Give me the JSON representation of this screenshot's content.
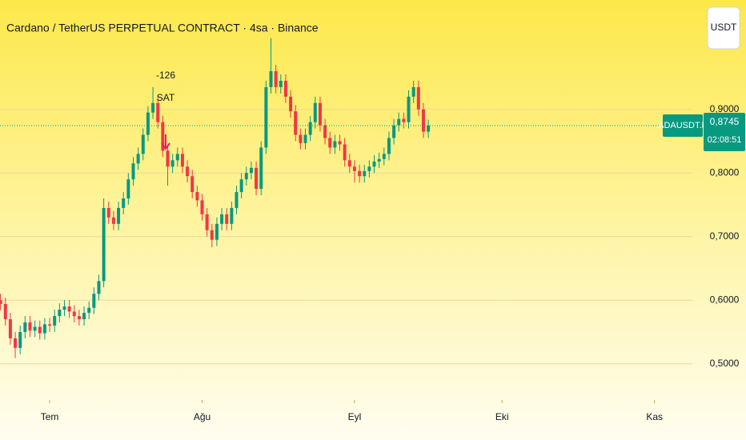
{
  "chart_data": {
    "type": "candlestick",
    "title": "Cardano / TetherUS PERPETUAL CONTRACT · 4sa · Binance",
    "currency_button": "USDT",
    "symbol_label": "ADAUSDT.P",
    "last_price": 0.8745,
    "last_price_label": "0,8745",
    "countdown": "02:08:51",
    "annotation": {
      "value_text": "-126",
      "signal": "SAT"
    },
    "up_color": "#089981",
    "down_color": "#f23645",
    "grid": true,
    "xlim": [
      -10.1,
      130.7
    ],
    "xticks": [
      {
        "value": 0,
        "label": "Tem"
      },
      {
        "value": 31,
        "label": "Ağu"
      },
      {
        "value": 62,
        "label": "Eyl"
      },
      {
        "value": 92,
        "label": "Eki"
      },
      {
        "value": 123,
        "label": "Kas"
      }
    ],
    "ylim": [
      0.443,
      1.072
    ],
    "yticks": [
      {
        "value": 0.5,
        "label": "0,5000"
      },
      {
        "value": 0.6,
        "label": "0,6000"
      },
      {
        "value": 0.7,
        "label": "0,7000"
      },
      {
        "value": 0.8,
        "label": "0,8000"
      },
      {
        "value": 0.9,
        "label": "0,9000"
      }
    ],
    "x": [
      -10,
      -9,
      -8,
      -7,
      -6,
      -5,
      -4,
      -3,
      -2,
      -1,
      0,
      1,
      2,
      3,
      4,
      5,
      6,
      7,
      8,
      9,
      10,
      11,
      12,
      13,
      14,
      15,
      16,
      17,
      18,
      19,
      20,
      21,
      22,
      23,
      24,
      25,
      26,
      27,
      28,
      29,
      30,
      31,
      32,
      33,
      34,
      35,
      36,
      37,
      38,
      39,
      40,
      41,
      42,
      43,
      44,
      45,
      46,
      47,
      48,
      49,
      50,
      51,
      52,
      53,
      54,
      55,
      56,
      57,
      58,
      59,
      60,
      61,
      62,
      63,
      64,
      65,
      66,
      67,
      68,
      69,
      70,
      71,
      72,
      73,
      74,
      75,
      76,
      77
    ],
    "open": [
      0.6,
      0.594,
      0.57,
      0.54,
      0.525,
      0.55,
      0.565,
      0.552,
      0.558,
      0.548,
      0.562,
      0.56,
      0.575,
      0.585,
      0.59,
      0.582,
      0.575,
      0.57,
      0.58,
      0.588,
      0.61,
      0.63,
      0.745,
      0.73,
      0.72,
      0.745,
      0.76,
      0.79,
      0.815,
      0.83,
      0.86,
      0.895,
      0.91,
      0.88,
      0.835,
      0.81,
      0.82,
      0.83,
      0.81,
      0.795,
      0.77,
      0.757,
      0.735,
      0.71,
      0.695,
      0.72,
      0.735,
      0.72,
      0.745,
      0.77,
      0.79,
      0.8,
      0.808,
      0.775,
      0.84,
      0.935,
      0.96,
      0.935,
      0.945,
      0.92,
      0.897,
      0.86,
      0.847,
      0.86,
      0.88,
      0.91,
      0.875,
      0.855,
      0.84,
      0.85,
      0.845,
      0.82,
      0.81,
      0.803,
      0.795,
      0.803,
      0.81,
      0.818,
      0.822,
      0.83,
      0.855,
      0.875,
      0.885,
      0.88,
      0.92,
      0.935,
      0.9,
      0.865
    ],
    "high": [
      0.61,
      0.604,
      0.58,
      0.55,
      0.56,
      0.575,
      0.575,
      0.568,
      0.568,
      0.572,
      0.572,
      0.585,
      0.595,
      0.6,
      0.6,
      0.592,
      0.585,
      0.59,
      0.598,
      0.62,
      0.64,
      0.76,
      0.755,
      0.74,
      0.755,
      0.77,
      0.8,
      0.825,
      0.84,
      0.87,
      0.905,
      0.935,
      0.92,
      0.89,
      0.845,
      0.83,
      0.84,
      0.84,
      0.82,
      0.805,
      0.78,
      0.767,
      0.745,
      0.72,
      0.73,
      0.745,
      0.745,
      0.755,
      0.78,
      0.8,
      0.81,
      0.818,
      0.818,
      0.85,
      0.945,
      1.012,
      0.97,
      0.955,
      0.955,
      0.93,
      0.907,
      0.87,
      0.87,
      0.89,
      0.92,
      0.92,
      0.885,
      0.865,
      0.86,
      0.86,
      0.855,
      0.83,
      0.82,
      0.813,
      0.813,
      0.82,
      0.828,
      0.832,
      0.84,
      0.865,
      0.885,
      0.895,
      0.895,
      0.93,
      0.945,
      0.945,
      0.91,
      0.884
    ],
    "low": [
      0.584,
      0.56,
      0.53,
      0.509,
      0.515,
      0.54,
      0.542,
      0.542,
      0.538,
      0.538,
      0.55,
      0.55,
      0.565,
      0.575,
      0.572,
      0.565,
      0.56,
      0.56,
      0.57,
      0.578,
      0.6,
      0.62,
      0.72,
      0.71,
      0.71,
      0.735,
      0.75,
      0.78,
      0.805,
      0.82,
      0.85,
      0.885,
      0.87,
      0.825,
      0.78,
      0.8,
      0.81,
      0.8,
      0.785,
      0.76,
      0.747,
      0.725,
      0.7,
      0.683,
      0.685,
      0.71,
      0.71,
      0.71,
      0.735,
      0.76,
      0.78,
      0.79,
      0.765,
      0.765,
      0.83,
      0.925,
      0.925,
      0.925,
      0.91,
      0.887,
      0.85,
      0.837,
      0.837,
      0.85,
      0.87,
      0.865,
      0.845,
      0.83,
      0.83,
      0.835,
      0.81,
      0.8,
      0.785,
      0.785,
      0.785,
      0.793,
      0.8,
      0.808,
      0.812,
      0.82,
      0.845,
      0.865,
      0.87,
      0.87,
      0.91,
      0.89,
      0.855,
      0.855
    ],
    "close": [
      0.594,
      0.57,
      0.54,
      0.525,
      0.55,
      0.565,
      0.552,
      0.558,
      0.548,
      0.562,
      0.56,
      0.575,
      0.585,
      0.59,
      0.582,
      0.575,
      0.57,
      0.58,
      0.588,
      0.61,
      0.63,
      0.745,
      0.73,
      0.72,
      0.745,
      0.76,
      0.79,
      0.815,
      0.83,
      0.86,
      0.895,
      0.91,
      0.88,
      0.835,
      0.81,
      0.82,
      0.83,
      0.81,
      0.795,
      0.77,
      0.757,
      0.735,
      0.71,
      0.695,
      0.72,
      0.735,
      0.72,
      0.745,
      0.77,
      0.79,
      0.8,
      0.808,
      0.775,
      0.84,
      0.935,
      0.96,
      0.935,
      0.945,
      0.92,
      0.897,
      0.86,
      0.847,
      0.86,
      0.88,
      0.91,
      0.875,
      0.855,
      0.84,
      0.85,
      0.845,
      0.82,
      0.81,
      0.803,
      0.795,
      0.803,
      0.81,
      0.818,
      0.822,
      0.83,
      0.855,
      0.875,
      0.885,
      0.88,
      0.92,
      0.935,
      0.9,
      0.865,
      0.8745
    ]
  }
}
